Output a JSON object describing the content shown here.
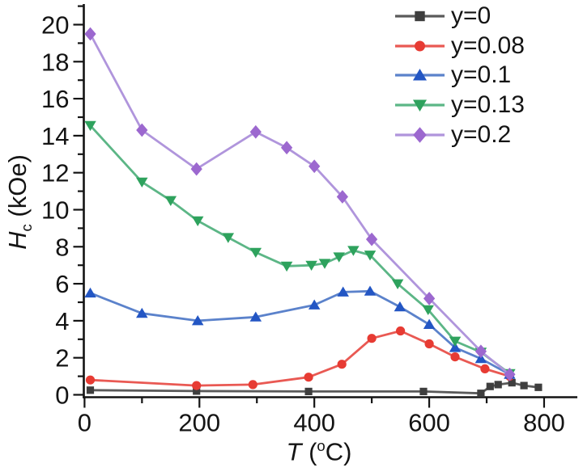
{
  "figure": {
    "background": "#ffffff",
    "axis_color": "#141414"
  },
  "chart_data": {
    "type": "line",
    "title": "",
    "xlabel": {
      "symbol": "T",
      "open": " (",
      "sup": "o",
      "close": "C)"
    },
    "ylabel": {
      "symbol": "H",
      "sub": "c",
      "unit": " (kOe)"
    },
    "xlim": [
      0,
      858
    ],
    "ylim": [
      0,
      21.1
    ],
    "grid": false,
    "legend_position": "top-right",
    "x_axis": {
      "major_ticks": [
        0,
        200,
        400,
        600,
        800
      ],
      "major_labels": [
        "0",
        "200",
        "400",
        "600",
        "800"
      ],
      "minor_ticks": [
        100,
        300,
        500,
        700
      ]
    },
    "y_axis": {
      "major_ticks": [
        0,
        2,
        4,
        6,
        8,
        10,
        12,
        14,
        16,
        18,
        20
      ],
      "major_labels": [
        "0",
        "2",
        "4",
        "6",
        "8",
        "10",
        "12",
        "14",
        "16",
        "18",
        "20"
      ],
      "minor_ticks": [
        1,
        3,
        5,
        7,
        9,
        11,
        13,
        15,
        17,
        19,
        21
      ]
    },
    "series": [
      {
        "name": "y=0",
        "marker": "square",
        "marker_color": "#3e3e3e",
        "line_color": "#5a5a5a",
        "points": [
          [
            10,
            0.25
          ],
          [
            195,
            0.2
          ],
          [
            390,
            0.18
          ],
          [
            590,
            0.18
          ],
          [
            690,
            0.08
          ],
          [
            706,
            0.45
          ],
          [
            720,
            0.55
          ],
          [
            744,
            0.65
          ],
          [
            765,
            0.5
          ],
          [
            790,
            0.4
          ]
        ]
      },
      {
        "name": "y=0.08",
        "marker": "circle",
        "marker_color": "#e73b33",
        "line_color": "#e95953",
        "points": [
          [
            10,
            0.8
          ],
          [
            195,
            0.5
          ],
          [
            293,
            0.55
          ],
          [
            390,
            0.95
          ],
          [
            448,
            1.65
          ],
          [
            500,
            3.05
          ],
          [
            550,
            3.45
          ],
          [
            600,
            2.75
          ],
          [
            645,
            2.05
          ],
          [
            697,
            1.4
          ],
          [
            740,
            1.0
          ]
        ]
      },
      {
        "name": "y=0.1",
        "marker": "triangle-up",
        "marker_color": "#2356c4",
        "line_color": "#5b82cb",
        "points": [
          [
            10,
            5.5
          ],
          [
            100,
            4.4
          ],
          [
            197,
            4.0
          ],
          [
            298,
            4.2
          ],
          [
            400,
            4.85
          ],
          [
            450,
            5.55
          ],
          [
            497,
            5.6
          ],
          [
            549,
            4.75
          ],
          [
            600,
            3.8
          ],
          [
            645,
            2.55
          ],
          [
            690,
            1.95
          ],
          [
            740,
            1.1
          ]
        ]
      },
      {
        "name": "y=0.13",
        "marker": "triangle-down",
        "marker_color": "#2ea25d",
        "line_color": "#5cb686",
        "points": [
          [
            10,
            14.55
          ],
          [
            100,
            11.5
          ],
          [
            150,
            10.5
          ],
          [
            197,
            9.4
          ],
          [
            250,
            8.5
          ],
          [
            298,
            7.7
          ],
          [
            352,
            6.95
          ],
          [
            395,
            7.0
          ],
          [
            418,
            7.1
          ],
          [
            443,
            7.45
          ],
          [
            468,
            7.8
          ],
          [
            497,
            7.55
          ],
          [
            545,
            6.0
          ],
          [
            598,
            4.6
          ],
          [
            645,
            2.9
          ],
          [
            690,
            2.3
          ],
          [
            740,
            1.15
          ]
        ]
      },
      {
        "name": "y=0.2",
        "marker": "diamond",
        "marker_color": "#9c68cf",
        "line_color": "#b095dc",
        "points": [
          [
            10,
            19.5
          ],
          [
            100,
            14.3
          ],
          [
            195,
            12.2
          ],
          [
            298,
            14.2
          ],
          [
            352,
            13.35
          ],
          [
            400,
            12.35
          ],
          [
            449,
            10.7
          ],
          [
            500,
            8.4
          ],
          [
            600,
            5.2
          ],
          [
            690,
            2.35
          ],
          [
            740,
            1.1
          ]
        ]
      }
    ]
  }
}
